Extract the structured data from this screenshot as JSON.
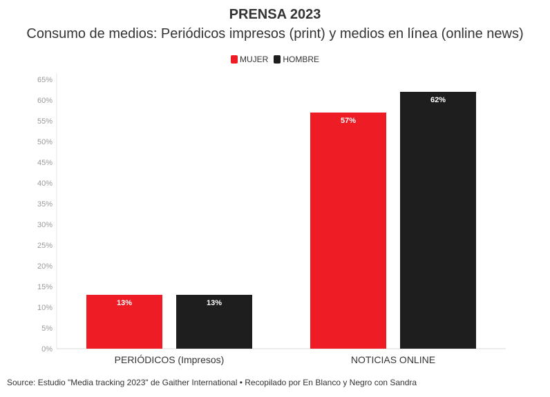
{
  "chart_data": {
    "type": "bar",
    "title": "PRENSA 2023",
    "subtitle": "Consumo de medios: Periódicos impresos (print) y medios en línea (online news)",
    "categories": [
      "PERIÓDICOS (Impresos)",
      "NOTICIAS ONLINE"
    ],
    "series": [
      {
        "name": "MUJER",
        "values": [
          13,
          57
        ],
        "labels": [
          "13%",
          "57%"
        ],
        "color": "#ee1c24"
      },
      {
        "name": "HOMBRE",
        "values": [
          13,
          62
        ],
        "labels": [
          "13%",
          "62%"
        ],
        "color": "#1e1e1e"
      }
    ],
    "y_ticks": [
      "0%",
      "5%",
      "10%",
      "15%",
      "20%",
      "25%",
      "30%",
      "35%",
      "40%",
      "45%",
      "50%",
      "55%",
      "60%",
      "65%"
    ],
    "ylim": [
      0,
      65
    ],
    "legend_position": "top-center",
    "grid": false
  },
  "source": "Source: Estudio \"Media tracking 2023\" de Gaither International • Recopilado por En Blanco y Negro con Sandra"
}
